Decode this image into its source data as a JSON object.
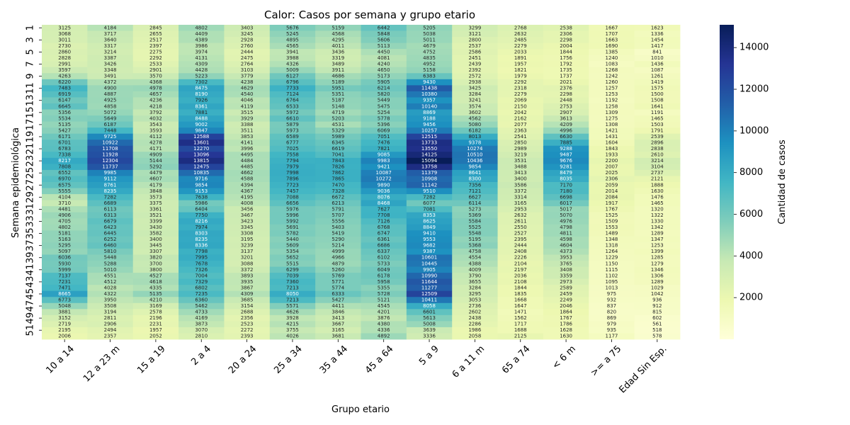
{
  "chart_data": {
    "type": "heatmap",
    "title": "Calor: Casos por semana y grupo etario",
    "xlabel": "Grupo etario",
    "ylabel": "Semana epidemiológica",
    "colorbar_label": "Cantidad de casos",
    "colormap": "YlGnBu",
    "value_range": [
      0,
      15094
    ],
    "colorbar_ticks": [
      2000,
      4000,
      6000,
      8000,
      10000,
      12000,
      14000
    ],
    "x_categories": [
      "10 a 14",
      "12 a 23 m",
      "15 a 19",
      "2 a 4",
      "20 a 24",
      "25 a 34",
      "35 a 44",
      "45 a 64",
      "5 a 9",
      "6 a 11 m",
      "65 a 74",
      "< 6 m",
      ">= a 75",
      "Edad Sin Esp."
    ],
    "y_categories": [
      "1",
      "2",
      "3",
      "4",
      "5",
      "6",
      "7",
      "8",
      "9",
      "10",
      "11",
      "12",
      "13",
      "14",
      "15",
      "16",
      "17",
      "18",
      "19",
      "20",
      "21",
      "22",
      "23",
      "24",
      "25",
      "26",
      "27",
      "28",
      "29",
      "30",
      "31",
      "32",
      "33",
      "34",
      "35",
      "36",
      "37",
      "38",
      "39",
      "40",
      "41",
      "42",
      "43",
      "44",
      "45",
      "46",
      "47",
      "48",
      "49",
      "50",
      "51",
      "52"
    ],
    "y_tick_labels": [
      "1",
      "3",
      "5",
      "7",
      "9",
      "11",
      "13",
      "15",
      "17",
      "19",
      "21",
      "23",
      "25",
      "27",
      "29",
      "31",
      "33",
      "35",
      "37",
      "39",
      "41",
      "43",
      "45",
      "47",
      "49",
      "51"
    ],
    "values": [
      [
        3125,
        4184,
        2845,
        4802,
        3403,
        5676,
        5159,
        6442,
        5205,
        3299,
        2768,
        2538,
        1667,
        1623
      ],
      [
        3068,
        3717,
        2655,
        4409,
        3245,
        5245,
        4568,
        5848,
        5038,
        3121,
        2632,
        2306,
        1707,
        1336
      ],
      [
        3011,
        3640,
        2517,
        4389,
        2928,
        4895,
        4295,
        5606,
        5011,
        2800,
        2485,
        2298,
        1663,
        1454
      ],
      [
        2730,
        3317,
        2397,
        3986,
        2760,
        4565,
        4011,
        5113,
        4679,
        2537,
        2279,
        2004,
        1690,
        1417
      ],
      [
        2860,
        3214,
        2275,
        3974,
        2444,
        3941,
        3436,
        4450,
        4752,
        2586,
        2033,
        1844,
        1385,
        841
      ],
      [
        2828,
        3387,
        2292,
        4131,
        2475,
        3988,
        3319,
        4081,
        4835,
        2451,
        1891,
        1756,
        1240,
        1010
      ],
      [
        2991,
        3426,
        2533,
        4309,
        2764,
        4326,
        3489,
        4240,
        4952,
        2439,
        1957,
        1792,
        1083,
        1436
      ],
      [
        3597,
        3348,
        2901,
        4428,
        3103,
        5009,
        3911,
        4650,
        5158,
        2392,
        1821,
        1735,
        1268,
        1087
      ],
      [
        4263,
        3491,
        3570,
        5223,
        3779,
        6127,
        4686,
        5173,
        6383,
        2572,
        1979,
        1737,
        1242,
        1261
      ],
      [
        6220,
        4372,
        4368,
        7302,
        4238,
        6796,
        5189,
        5905,
        9430,
        2938,
        2292,
        2021,
        1260,
        1419
      ],
      [
        7483,
        4900,
        4978,
        8475,
        4629,
        7733,
        5951,
        6214,
        11438,
        3425,
        2318,
        2376,
        1257,
        1575
      ],
      [
        6919,
        4887,
        4657,
        8190,
        4540,
        7124,
        5351,
        5820,
        10380,
        3284,
        2279,
        2298,
        1253,
        1500
      ],
      [
        6147,
        4925,
        4236,
        7926,
        4046,
        6764,
        5187,
        5449,
        9357,
        3241,
        2069,
        2448,
        1192,
        1508
      ],
      [
        6645,
        4858,
        4218,
        8361,
        4119,
        6533,
        5148,
        5475,
        10140,
        3574,
        2150,
        2753,
        1258,
        1641
      ],
      [
        5356,
        5072,
        3792,
        7881,
        3515,
        5972,
        4719,
        5254,
        8869,
        3602,
        2042,
        2907,
        1309,
        1191
      ],
      [
        5534,
        5649,
        4032,
        8488,
        3929,
        6610,
        5203,
        5778,
        9188,
        4562,
        2162,
        3613,
        1275,
        1465
      ],
      [
        5135,
        6187,
        3543,
        9002,
        3388,
        5879,
        4531,
        5396,
        9456,
        5080,
        2077,
        4209,
        1308,
        1503
      ],
      [
        5427,
        7448,
        3593,
        9847,
        3511,
        5973,
        5329,
        6069,
        10257,
        6182,
        2363,
        4996,
        1421,
        1791
      ],
      [
        6171,
        9725,
        4112,
        12588,
        3853,
        6589,
        5989,
        7051,
        12515,
        8013,
        2541,
        6630,
        1431,
        2539
      ],
      [
        6701,
        10922,
        4278,
        13601,
        4141,
        6777,
        6345,
        7476,
        13733,
        9378,
        2850,
        7885,
        1604,
        2896
      ],
      [
        6783,
        11708,
        4171,
        12270,
        3996,
        7025,
        6619,
        7821,
        13550,
        10274,
        2989,
        9288,
        1843,
        2838
      ],
      [
        7338,
        11928,
        4909,
        13096,
        4495,
        7558,
        7041,
        9085,
        14125,
        10510,
        3219,
        9487,
        1933,
        2610
      ],
      [
        8217,
        12304,
        5144,
        13815,
        4484,
        7794,
        7843,
        9983,
        15094,
        10436,
        3531,
        9676,
        2200,
        3214
      ],
      [
        7808,
        11737,
        5292,
        12475,
        4485,
        7979,
        7826,
        9421,
        13758,
        9854,
        3488,
        9281,
        2007,
        3104
      ],
      [
        6552,
        9985,
        4479,
        10835,
        4662,
        7998,
        7862,
        10087,
        11379,
        8641,
        3413,
        8479,
        2025,
        2737
      ],
      [
        6970,
        9112,
        4607,
        9716,
        4588,
        7896,
        7865,
        10272,
        10908,
        8300,
        3400,
        8035,
        2306,
        2121
      ],
      [
        6575,
        8761,
        4179,
        9854,
        4394,
        7723,
        7470,
        9890,
        11142,
        7356,
        3586,
        7170,
        2059,
        1888
      ],
      [
        5555,
        8235,
        3848,
        9153,
        4367,
        7457,
        7328,
        9036,
        9510,
        7121,
        3372,
        7180,
        2014,
        1630
      ],
      [
        4104,
        7282,
        3573,
        7638,
        4195,
        7088,
        6672,
        8076,
        7282,
        6627,
        3314,
        6698,
        2084,
        1476
      ],
      [
        3710,
        6689,
        3375,
        5986,
        4008,
        6656,
        6213,
        8468,
        6077,
        6114,
        3165,
        6017,
        1917,
        1465
      ],
      [
        4481,
        6113,
        3361,
        6404,
        3456,
        5976,
        5791,
        7627,
        7081,
        5273,
        2953,
        5017,
        1767,
        1320
      ],
      [
        4906,
        6313,
        3521,
        7750,
        3467,
        5996,
        5707,
        7708,
        8353,
        5369,
        2632,
        5070,
        1525,
        1322
      ],
      [
        4705,
        6679,
        3399,
        8216,
        3423,
        5992,
        5556,
        7126,
        8625,
        5584,
        2611,
        4976,
        1509,
        1330
      ],
      [
        4802,
        6423,
        3430,
        7974,
        3345,
        5691,
        5403,
        6768,
        8849,
        5525,
        2550,
        4798,
        1553,
        1342
      ],
      [
        5181,
        6445,
        3582,
        8303,
        3308,
        5782,
        5419,
        6747,
        9410,
        5548,
        2527,
        4811,
        1489,
        1289
      ],
      [
        5163,
        6252,
        3400,
        8235,
        3195,
        5440,
        5290,
        6361,
        9553,
        5195,
        2395,
        4598,
        1348,
        1347
      ],
      [
        5295,
        6460,
        3445,
        8336,
        3239,
        5609,
        5214,
        6686,
        9682,
        5368,
        2444,
        4604,
        1318,
        1253
      ],
      [
        5097,
        5810,
        3307,
        7798,
        3137,
        5354,
        4999,
        6337,
        9387,
        4758,
        2408,
        4373,
        1264,
        1399
      ],
      [
        6036,
        5448,
        3820,
        7995,
        3201,
        5652,
        4966,
        6102,
        10601,
        4554,
        2226,
        3953,
        1229,
        1285
      ],
      [
        5930,
        5288,
        3700,
        7678,
        3088,
        5515,
        4879,
        5733,
        10445,
        4388,
        2104,
        3765,
        1150,
        1279
      ],
      [
        5999,
        5010,
        3800,
        7326,
        3372,
        6299,
        5260,
        6049,
        9905,
        4009,
        2197,
        3408,
        1115,
        1346
      ],
      [
        7137,
        4551,
        4527,
        7004,
        3893,
        7039,
        5769,
        6178,
        10990,
        3790,
        2036,
        3359,
        1102,
        1306
      ],
      [
        7231,
        4512,
        4618,
        7329,
        3935,
        7360,
        5771,
        5958,
        11644,
        3655,
        2108,
        2973,
        1095,
        1289
      ],
      [
        7471,
        4028,
        4335,
        6802,
        3867,
        7213,
        5774,
        5355,
        11277,
        3284,
        1844,
        2589,
        1013,
        1029
      ],
      [
        8665,
        4322,
        5135,
        7235,
        4309,
        8050,
        6333,
        5728,
        12509,
        3295,
        1835,
        2459,
        975,
        1042
      ],
      [
        6773,
        3950,
        4210,
        6360,
        3685,
        7213,
        5427,
        5121,
        10411,
        3053,
        1668,
        2249,
        932,
        936
      ],
      [
        5048,
        3508,
        3169,
        5462,
        3154,
        5571,
        4411,
        4545,
        8058,
        2736,
        1647,
        2046,
        837,
        912
      ],
      [
        3881,
        3194,
        2578,
        4733,
        2688,
        4626,
        3846,
        4201,
        6601,
        2602,
        1471,
        1864,
        820,
        815
      ],
      [
        3152,
        2811,
        2196,
        4169,
        2356,
        3928,
        3413,
        3876,
        5613,
        2438,
        1562,
        1767,
        869,
        602
      ],
      [
        2719,
        2906,
        2231,
        3873,
        2523,
        4215,
        3667,
        4380,
        5008,
        2286,
        1717,
        1786,
        979,
        561
      ],
      [
        2195,
        2494,
        1957,
        3070,
        2272,
        3755,
        3165,
        4336,
        3639,
        1986,
        1688,
        1628,
        935,
        518
      ],
      [
        2006,
        2357,
        2052,
        2810,
        2393,
        4026,
        3681,
        4892,
        3336,
        2058,
        2125,
        1630,
        1177,
        578
      ]
    ]
  }
}
